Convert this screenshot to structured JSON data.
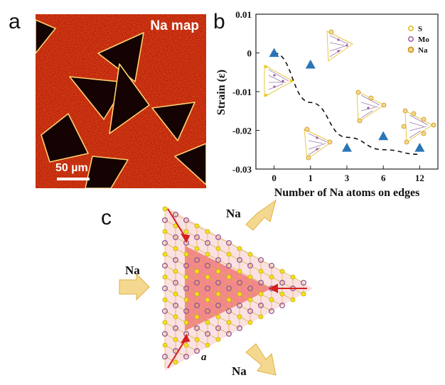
{
  "panels": {
    "a": "a",
    "b": "b",
    "c": "c"
  },
  "map": {
    "title": "Na map",
    "scale_label": "50 µm"
  },
  "chart_data": {
    "type": "scatter",
    "title": "",
    "xlabel": "Number of Na atoms on edges",
    "ylabel": "Strain (ε)",
    "categories": [
      "0",
      "1",
      "3",
      "6",
      "12"
    ],
    "series": [
      {
        "values": [
          0.0,
          -0.003,
          -0.0245,
          -0.0215,
          -0.0245
        ],
        "marker": "triangle",
        "color": "#2a75b5"
      }
    ],
    "trend": {
      "style": "dashed",
      "color": "#111111",
      "values": [
        0.0,
        -0.0128,
        -0.0218,
        -0.025,
        -0.0262
      ]
    },
    "ylim": [
      -0.03,
      0.01
    ],
    "yticks": [
      "0.01",
      "0",
      "-0.01",
      "-0.02",
      "-0.03"
    ],
    "legend": {
      "position": "top-right",
      "entries": [
        {
          "label": "S",
          "color": "#f2c81a"
        },
        {
          "label": "Mo",
          "color": "#9a5a9a"
        },
        {
          "label": "Na",
          "color": "#e8a21a"
        }
      ]
    }
  },
  "diagram": {
    "labels": {
      "na_top": "Na",
      "na_left": "Na",
      "na_bottom": "Na",
      "lattice": "a"
    },
    "colors": {
      "sulfur": "#f2e21a",
      "molybdenum": "#9a5a9a",
      "strain_core": "#f06a6a",
      "arrow_in": "#f5d890",
      "strain_arrow": "#d42020"
    }
  }
}
